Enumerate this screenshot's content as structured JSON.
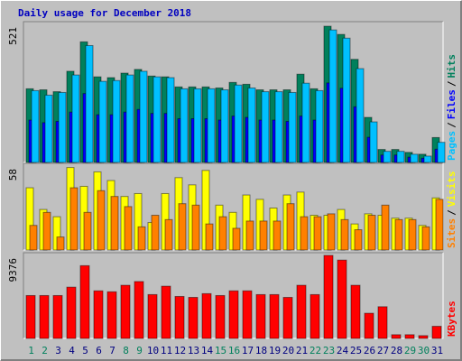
{
  "title": "Daily usage for December 2018",
  "separator": "/",
  "chart_data": [
    {
      "type": "bar",
      "ylim": [
        0,
        521
      ],
      "yticks": [
        521
      ],
      "series": [
        {
          "name": "Hits",
          "color": "#00805c",
          "values": [
            278,
            274,
            267,
            344,
            455,
            323,
            320,
            337,
            351,
            326,
            323,
            285,
            285,
            285,
            281,
            302,
            295,
            274,
            274,
            274,
            333,
            278,
            514,
            483,
            389,
            170,
            49,
            49,
            38,
            31,
            94
          ]
        },
        {
          "name": "Files",
          "color": "#0000ff",
          "values": [
            160,
            150,
            155,
            190,
            260,
            180,
            180,
            190,
            200,
            185,
            185,
            165,
            165,
            165,
            160,
            175,
            170,
            160,
            160,
            155,
            175,
            160,
            300,
            280,
            210,
            95,
            28,
            28,
            20,
            16,
            50
          ]
        },
        {
          "name": "Pages",
          "color": "#00c0ff",
          "values": [
            271,
            254,
            264,
            330,
            441,
            306,
            309,
            330,
            344,
            323,
            320,
            278,
            278,
            278,
            274,
            292,
            281,
            267,
            267,
            264,
            299,
            271,
            500,
            469,
            354,
            153,
            42,
            42,
            31,
            24,
            76
          ]
        }
      ]
    },
    {
      "type": "bar",
      "ylim": [
        0,
        58
      ],
      "yticks": [
        58
      ],
      "series": [
        {
          "name": "Visits",
          "color": "#ffff00",
          "values": [
            43,
            28,
            23,
            57,
            44,
            54,
            48,
            37,
            39,
            19,
            39,
            50,
            45,
            55,
            31,
            26,
            38,
            35,
            29,
            38,
            40,
            24,
            24,
            28,
            18,
            25,
            24,
            22,
            22,
            17,
            36
          ]
        },
        {
          "name": "Sites",
          "color": "#ff8000",
          "values": [
            17,
            26,
            9,
            43,
            26,
            41,
            37,
            30,
            16,
            24,
            21,
            32,
            31,
            18,
            23,
            15,
            20,
            20,
            20,
            32,
            23,
            23,
            25,
            21,
            14,
            24,
            31,
            21,
            21,
            16,
            35
          ]
        }
      ]
    },
    {
      "type": "bar",
      "ylim": [
        0,
        9376
      ],
      "yticks": [
        9376
      ],
      "categories": [
        "1",
        "2",
        "3",
        "4",
        "5",
        "6",
        "7",
        "8",
        "9",
        "10",
        "11",
        "12",
        "13",
        "14",
        "15",
        "16",
        "17",
        "18",
        "19",
        "20",
        "21",
        "22",
        "23",
        "24",
        "25",
        "26",
        "27",
        "28",
        "29",
        "30",
        "31"
      ],
      "category_colors": [
        "#00805c",
        "#00805c",
        "#000080",
        "#000080",
        "#000080",
        "#000080",
        "#000080",
        "#00805c",
        "#00805c",
        "#000080",
        "#000080",
        "#000080",
        "#000080",
        "#000080",
        "#00805c",
        "#00805c",
        "#000080",
        "#000080",
        "#000080",
        "#000080",
        "#000080",
        "#00805c",
        "#00805c",
        "#000080",
        "#000080",
        "#000080",
        "#000080",
        "#000080",
        "#00805c",
        "#00805c",
        "#000080"
      ],
      "series": [
        {
          "name": "KBytes",
          "color": "#ff0000",
          "values": [
            4846,
            4846,
            4846,
            5794,
            8217,
            5373,
            5267,
            6005,
            6426,
            4951,
            5900,
            4741,
            4635,
            5057,
            4846,
            5373,
            5373,
            4951,
            4951,
            4635,
            6005,
            4951,
            9376,
            8849,
            6005,
            2844,
            3582,
            421,
            421,
            316,
            1370
          ]
        }
      ]
    }
  ]
}
